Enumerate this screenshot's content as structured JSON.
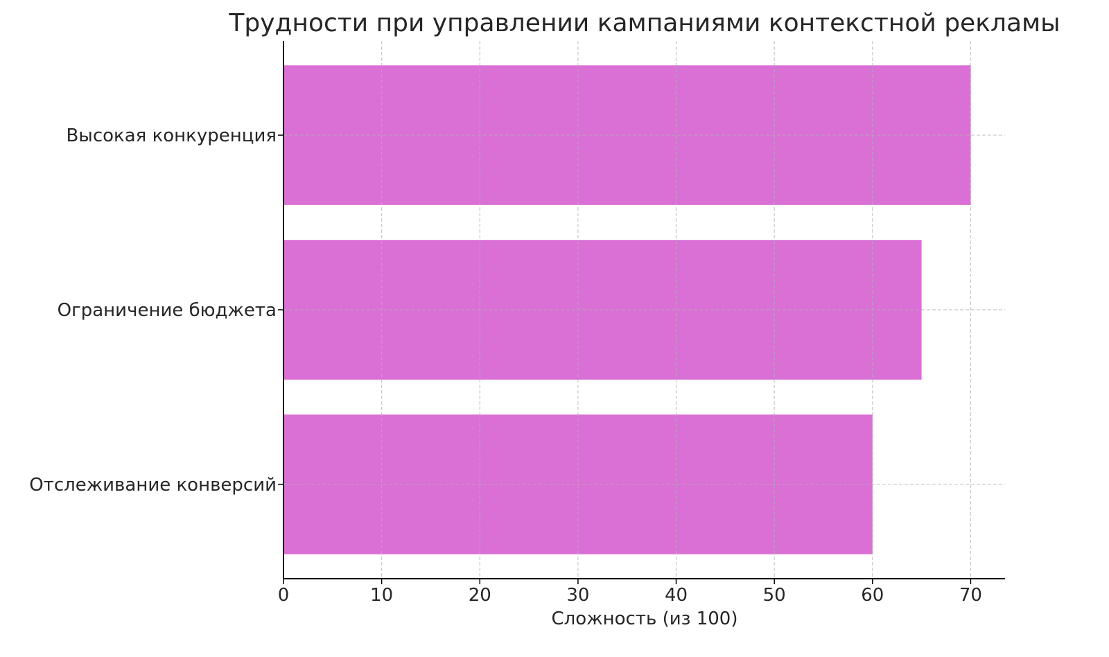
{
  "chart_data": {
    "type": "bar",
    "orientation": "horizontal",
    "title": "Трудности при управлении кампаниями контекстной рекламы",
    "xlabel": "Сложность (из 100)",
    "ylabel": "",
    "categories": [
      "Отслеживание конверсий",
      "Ограничение бюджета",
      "Высокая конкуренция"
    ],
    "values": [
      60,
      65,
      70
    ],
    "xlim": [
      0,
      73.5
    ],
    "xticks": [
      "0",
      "10",
      "20",
      "30",
      "40",
      "50",
      "60",
      "70"
    ],
    "grid": true,
    "grid_style": "dashed",
    "legend": "none",
    "bar_color": "#DA70D6"
  }
}
